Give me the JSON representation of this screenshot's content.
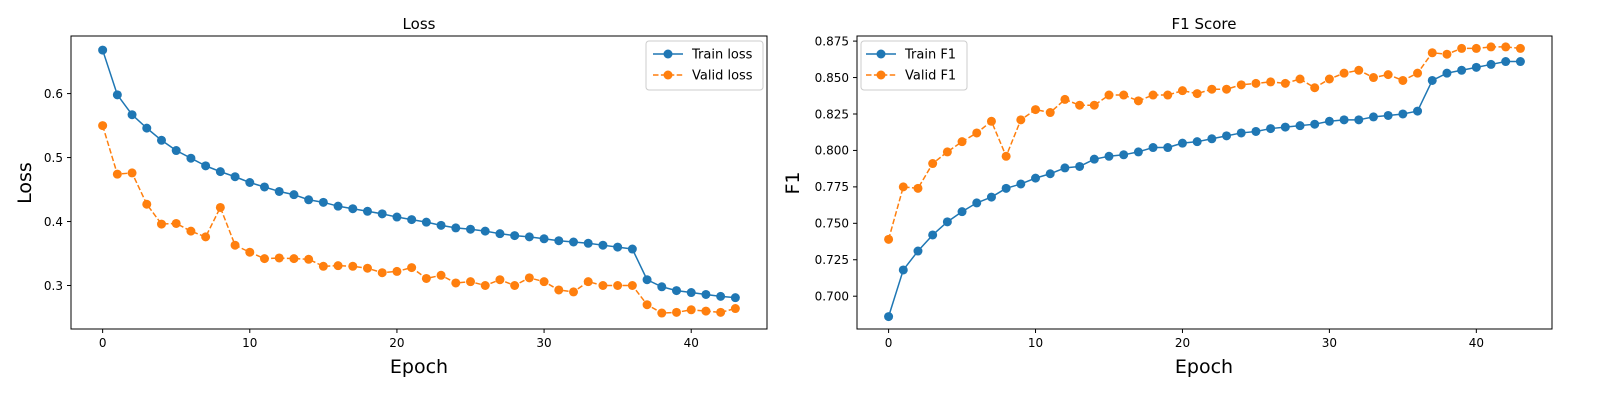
{
  "colors": {
    "train": "#1f77b4",
    "valid": "#ff7f0e"
  },
  "chart_data": [
    {
      "type": "line",
      "title": "Loss",
      "xlabel": "Epoch",
      "ylabel": "Loss",
      "xlim": [
        -2.15,
        45.15
      ],
      "ylim": [
        0.232,
        0.69
      ],
      "xticks": [
        0,
        10,
        20,
        30,
        40
      ],
      "yticks": [
        0.3,
        0.4,
        0.5,
        0.6
      ],
      "ytick_labels": [
        "0.3",
        "0.4",
        "0.5",
        "0.6"
      ],
      "legend": "top-right",
      "series": [
        {
          "name": "Train loss",
          "style": "solid",
          "values": [
            0.668,
            0.598,
            0.567,
            0.546,
            0.527,
            0.511,
            0.499,
            0.487,
            0.478,
            0.47,
            0.461,
            0.454,
            0.447,
            0.442,
            0.434,
            0.43,
            0.424,
            0.42,
            0.416,
            0.412,
            0.407,
            0.403,
            0.399,
            0.394,
            0.39,
            0.388,
            0.385,
            0.381,
            0.378,
            0.376,
            0.373,
            0.37,
            0.368,
            0.366,
            0.363,
            0.36,
            0.357,
            0.309,
            0.298,
            0.292,
            0.289,
            0.286,
            0.283,
            0.281
          ]
        },
        {
          "name": "Valid loss",
          "style": "dashed",
          "values": [
            0.55,
            0.474,
            0.476,
            0.427,
            0.396,
            0.397,
            0.385,
            0.376,
            0.422,
            0.363,
            0.352,
            0.342,
            0.343,
            0.342,
            0.341,
            0.33,
            0.331,
            0.33,
            0.327,
            0.32,
            0.322,
            0.328,
            0.311,
            0.316,
            0.304,
            0.306,
            0.3,
            0.309,
            0.3,
            0.312,
            0.306,
            0.293,
            0.29,
            0.306,
            0.3,
            0.3,
            0.3,
            0.27,
            0.257,
            0.258,
            0.262,
            0.26,
            0.258,
            0.264
          ]
        }
      ]
    },
    {
      "type": "line",
      "title": "F1 Score",
      "xlabel": "Epoch",
      "ylabel": "F1",
      "xlim": [
        -2.15,
        45.15
      ],
      "ylim": [
        0.6775,
        0.8785
      ],
      "xticks": [
        0,
        10,
        20,
        30,
        40
      ],
      "yticks": [
        0.7,
        0.725,
        0.75,
        0.775,
        0.8,
        0.825,
        0.85,
        0.875
      ],
      "ytick_labels": [
        "0.700",
        "0.725",
        "0.750",
        "0.775",
        "0.800",
        "0.825",
        "0.850",
        "0.875"
      ],
      "legend": "top-left",
      "series": [
        {
          "name": "Train F1",
          "style": "solid",
          "values": [
            0.686,
            0.718,
            0.731,
            0.742,
            0.751,
            0.758,
            0.764,
            0.768,
            0.774,
            0.777,
            0.781,
            0.784,
            0.788,
            0.789,
            0.794,
            0.796,
            0.797,
            0.799,
            0.802,
            0.802,
            0.805,
            0.806,
            0.808,
            0.81,
            0.812,
            0.813,
            0.815,
            0.816,
            0.817,
            0.818,
            0.82,
            0.821,
            0.821,
            0.823,
            0.824,
            0.825,
            0.827,
            0.848,
            0.853,
            0.855,
            0.857,
            0.859,
            0.861,
            0.861
          ]
        },
        {
          "name": "Valid F1",
          "style": "dashed",
          "values": [
            0.739,
            0.775,
            0.774,
            0.791,
            0.799,
            0.806,
            0.812,
            0.82,
            0.796,
            0.821,
            0.828,
            0.826,
            0.835,
            0.831,
            0.831,
            0.838,
            0.838,
            0.834,
            0.838,
            0.838,
            0.841,
            0.839,
            0.842,
            0.842,
            0.845,
            0.846,
            0.847,
            0.846,
            0.849,
            0.843,
            0.849,
            0.853,
            0.855,
            0.85,
            0.852,
            0.848,
            0.853,
            0.867,
            0.866,
            0.87,
            0.87,
            0.871,
            0.871,
            0.87
          ]
        }
      ]
    }
  ]
}
